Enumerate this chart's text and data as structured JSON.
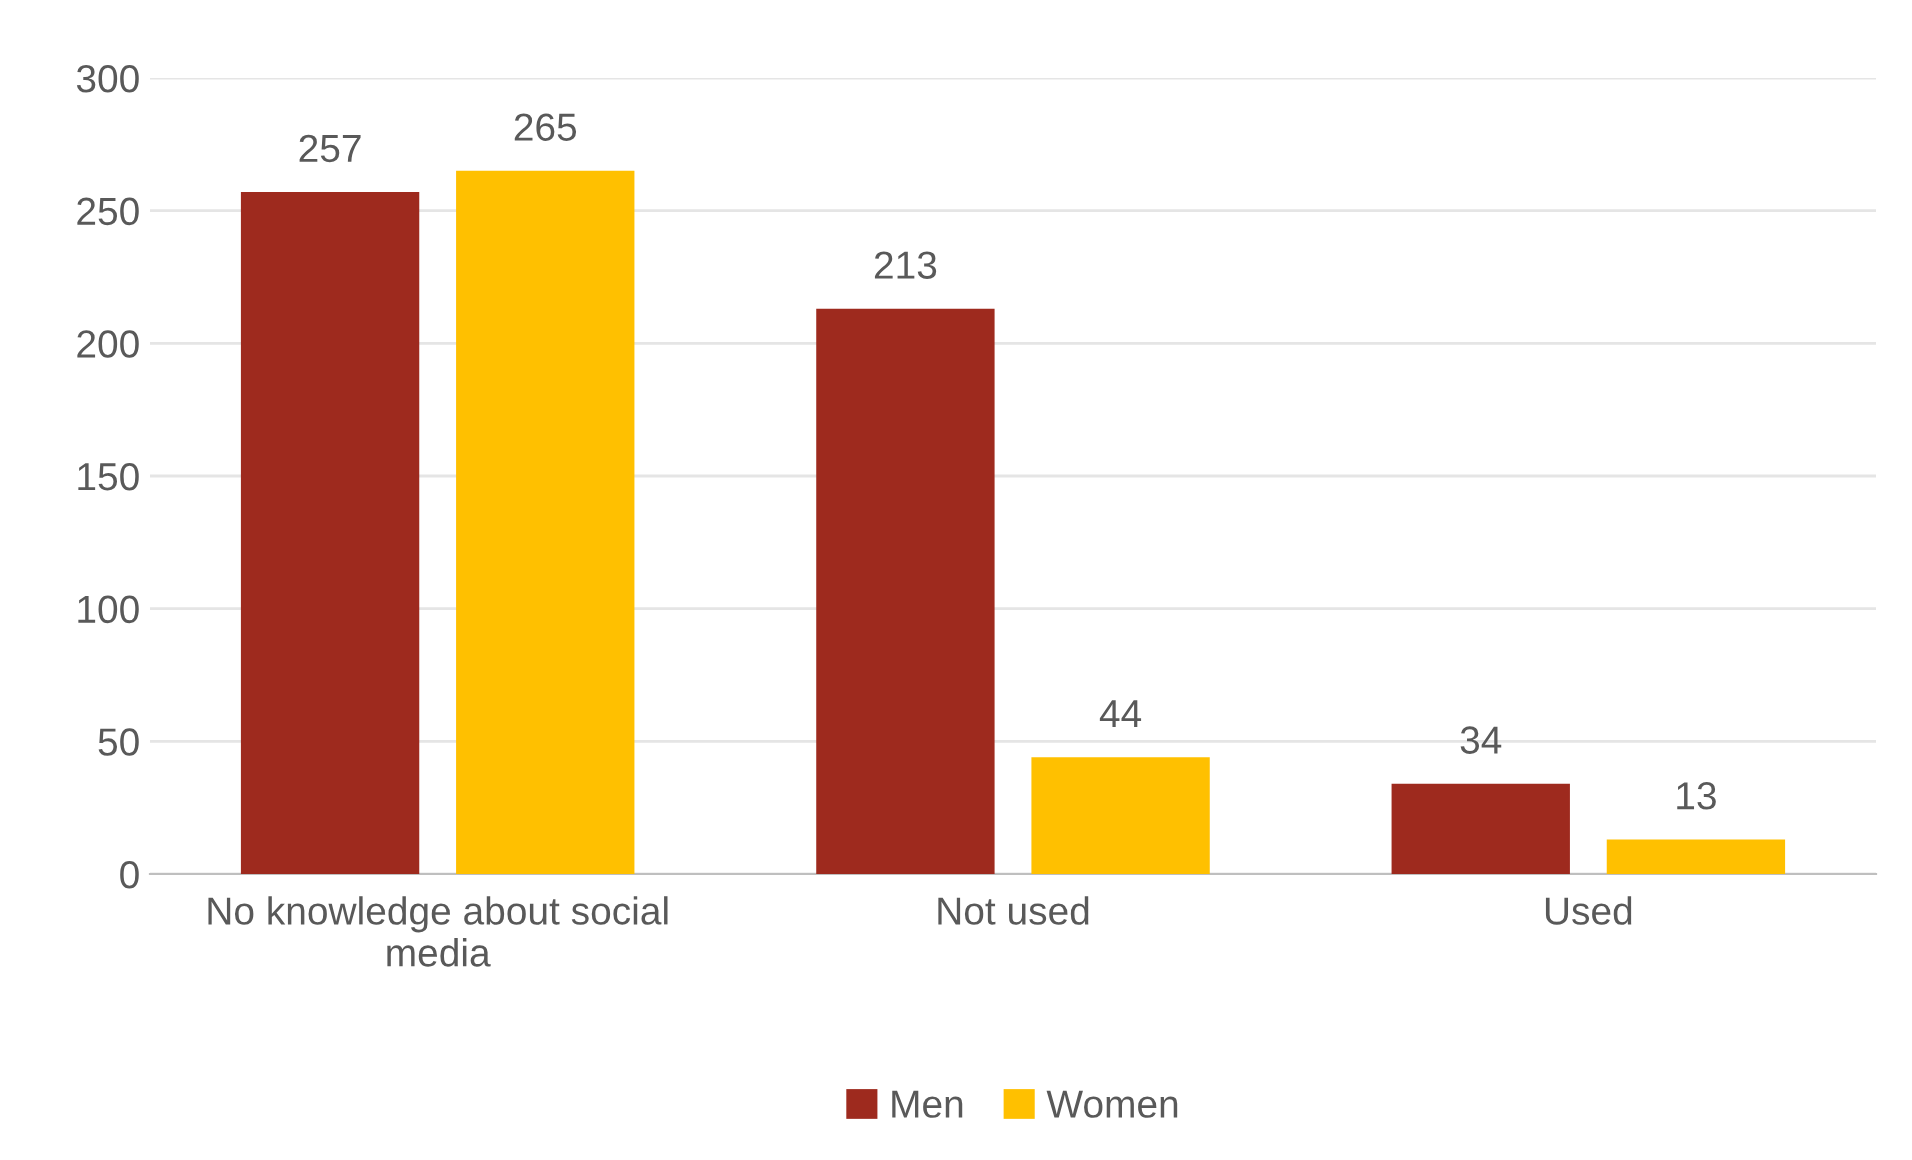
{
  "chart_data": {
    "type": "bar",
    "categories": [
      "No knowledge about social media",
      "Not used",
      "Used"
    ],
    "series": [
      {
        "name": "Men",
        "color": "#9e2a1e",
        "values": [
          257,
          213,
          34
        ]
      },
      {
        "name": "Women",
        "color": "#ffc000",
        "values": [
          265,
          44,
          13
        ]
      }
    ],
    "ylim": [
      0,
      300
    ],
    "yticks": [
      0,
      50,
      100,
      150,
      200,
      250,
      300
    ],
    "grid": "y",
    "legend": "bottom",
    "data_labels": true
  }
}
